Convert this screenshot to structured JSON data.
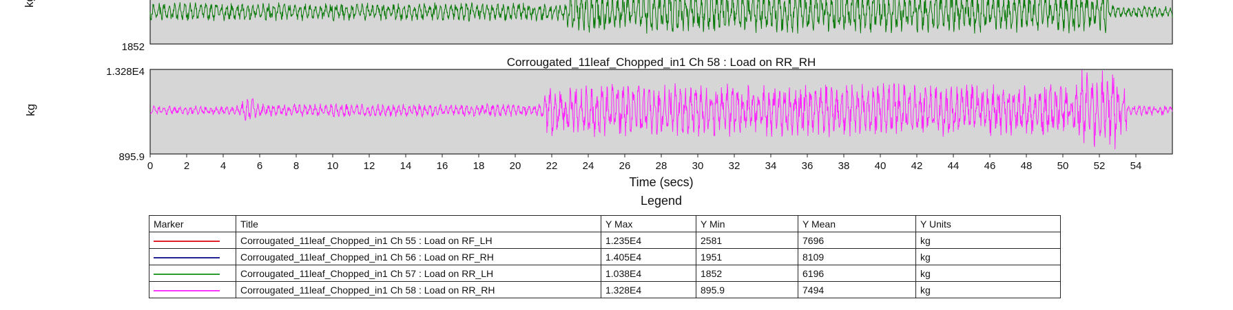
{
  "chart_data": [
    {
      "type": "line",
      "title": "",
      "ylabel": "kg",
      "ylim": [
        1852,
        10380
      ],
      "ytick_labels": [
        "1852"
      ],
      "series": [
        {
          "name": "Corrougated_11leaf_Chopped_in1  Ch 57 : Load on RR_LH",
          "color": "#0a7a0a"
        }
      ]
    },
    {
      "type": "line",
      "title": "Corrougated_11leaf_Chopped_in1  Ch 58 : Load on RR_RH",
      "ylabel": "kg",
      "ylim": [
        895.9,
        13280
      ],
      "ytick_labels": [
        "1.328E4",
        "895.9"
      ],
      "xlabel": "Time (secs)",
      "xlim": [
        0,
        56
      ],
      "xticks": [
        0,
        2,
        4,
        6,
        8,
        10,
        12,
        14,
        16,
        18,
        20,
        22,
        24,
        26,
        28,
        30,
        32,
        34,
        36,
        38,
        40,
        42,
        44,
        46,
        48,
        50,
        52,
        54
      ],
      "series": [
        {
          "name": "Corrougated_11leaf_Chopped_in1  Ch 58 : Load on RR_RH",
          "color": "#ff22ff",
          "mean": 7494,
          "min": 895.9,
          "max": 13280
        }
      ]
    }
  ],
  "legend": {
    "title": "Legend",
    "headers": {
      "marker": "Marker",
      "title": "Title",
      "ymax": "Y Max",
      "ymin": "Y Min",
      "ymean": "Y Mean",
      "yunits": "Y Units"
    },
    "rows": [
      {
        "color": "#e0202a",
        "title": "Corrougated_11leaf_Chopped_in1  Ch 55 : Load on RF_LH",
        "ymax": "1.235E4",
        "ymin": "2581",
        "ymean": "7696",
        "yunits": "kg"
      },
      {
        "color": "#202090",
        "title": "Corrougated_11leaf_Chopped_in1  Ch 56 : Load on RF_RH",
        "ymax": "1.405E4",
        "ymin": "1951",
        "ymean": "8109",
        "yunits": "kg"
      },
      {
        "color": "#2a9a2a",
        "title": "Corrougated_11leaf_Chopped_in1  Ch 57 : Load on RR_LH",
        "ymax": "1.038E4",
        "ymin": "1852",
        "ymean": "6196",
        "yunits": "kg"
      },
      {
        "color": "#ff33ff",
        "title": "Corrougated_11leaf_Chopped_in1  Ch 58 : Load on RR_RH",
        "ymax": "1.328E4",
        "ymin": "895.9",
        "ymean": "7494",
        "yunits": "kg"
      }
    ]
  }
}
